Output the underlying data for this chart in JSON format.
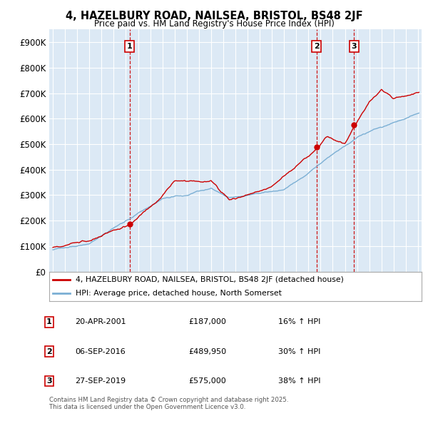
{
  "title": "4, HAZELBURY ROAD, NAILSEA, BRISTOL, BS48 2JF",
  "subtitle": "Price paid vs. HM Land Registry's House Price Index (HPI)",
  "ylim": [
    0,
    950000
  ],
  "yticks": [
    0,
    100000,
    200000,
    300000,
    400000,
    500000,
    600000,
    700000,
    800000,
    900000
  ],
  "ytick_labels": [
    "£0",
    "£100K",
    "£200K",
    "£300K",
    "£400K",
    "£500K",
    "£600K",
    "£700K",
    "£800K",
    "£900K"
  ],
  "sale_color": "#cc0000",
  "hpi_color": "#7bafd4",
  "dashed_color": "#cc0000",
  "background_color": "#ffffff",
  "chart_bg_color": "#dce9f5",
  "grid_color": "#ffffff",
  "sale_label": "4, HAZELBURY ROAD, NAILSEA, BRISTOL, BS48 2JF (detached house)",
  "hpi_label": "HPI: Average price, detached house, North Somerset",
  "transactions": [
    {
      "num": 1,
      "date": "20-APR-2001",
      "price": 187000,
      "hpi_pct": "16% ↑ HPI",
      "year": 2001.3
    },
    {
      "num": 2,
      "date": "06-SEP-2016",
      "price": 489950,
      "hpi_pct": "30% ↑ HPI",
      "year": 2016.67
    },
    {
      "num": 3,
      "date": "27-SEP-2019",
      "price": 575000,
      "hpi_pct": "38% ↑ HPI",
      "year": 2019.75
    }
  ],
  "copyright": "Contains HM Land Registry data © Crown copyright and database right 2025.\nThis data is licensed under the Open Government Licence v3.0.",
  "start_year": 1995,
  "end_year": 2025
}
